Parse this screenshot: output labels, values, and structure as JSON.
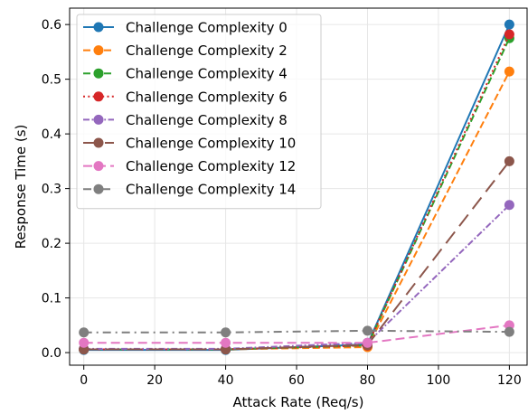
{
  "chart_data": {
    "type": "line",
    "title": "",
    "xlabel": "Attack Rate (Req/s)",
    "ylabel": "Response Time (s)",
    "x": [
      0,
      40,
      80,
      120
    ],
    "xlim": [
      -4,
      125
    ],
    "ylim": [
      -0.023,
      0.63
    ],
    "xticks": [
      0,
      20,
      40,
      60,
      80,
      100,
      120
    ],
    "yticks": [
      0.0,
      0.1,
      0.2,
      0.3,
      0.4,
      0.5,
      0.6
    ],
    "xtick_labels": [
      "0",
      "20",
      "40",
      "60",
      "80",
      "100",
      "120"
    ],
    "ytick_labels": [
      "0.0",
      "0.1",
      "0.2",
      "0.3",
      "0.4",
      "0.5",
      "0.6"
    ],
    "grid": true,
    "legend_position": "top-left",
    "series": [
      {
        "name": "Challenge Complexity 0",
        "values": [
          0.005,
          0.005,
          0.015,
          0.6
        ],
        "color": "#1f77b4",
        "dash": "solid"
      },
      {
        "name": "Challenge Complexity 2",
        "values": [
          0.006,
          0.006,
          0.01,
          0.514
        ],
        "color": "#ff7f0e",
        "dash": "dashed"
      },
      {
        "name": "Challenge Complexity 4",
        "values": [
          0.006,
          0.006,
          0.013,
          0.575
        ],
        "color": "#2ca02c",
        "dash": "dashed"
      },
      {
        "name": "Challenge Complexity 6",
        "values": [
          0.006,
          0.006,
          0.013,
          0.582
        ],
        "color": "#d62728",
        "dash": "dotted"
      },
      {
        "name": "Challenge Complexity 8",
        "values": [
          0.007,
          0.007,
          0.018,
          0.27
        ],
        "color": "#9467bd",
        "dash": "dashdot"
      },
      {
        "name": "Challenge Complexity 10",
        "values": [
          0.006,
          0.006,
          0.014,
          0.35
        ],
        "color": "#8c564b",
        "dash": "longdash"
      },
      {
        "name": "Challenge Complexity 12",
        "values": [
          0.018,
          0.018,
          0.018,
          0.05
        ],
        "color": "#e377c2",
        "dash": "dashed2"
      },
      {
        "name": "Challenge Complexity 14",
        "values": [
          0.037,
          0.037,
          0.04,
          0.038
        ],
        "color": "#7f7f7f",
        "dash": "dashdot2"
      }
    ]
  }
}
